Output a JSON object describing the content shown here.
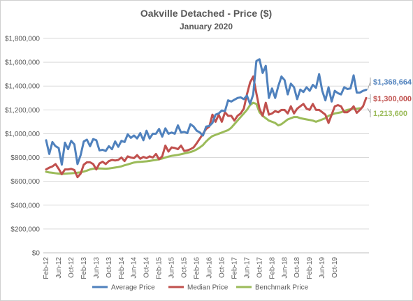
{
  "chart_data": {
    "type": "line",
    "title": "Oakville Detached - Price ($)",
    "subtitle": "January 2020",
    "xlabel": "",
    "ylabel": "",
    "ylim": [
      0,
      1800000
    ],
    "y_ticks": [
      "$0",
      "$200,000",
      "$400,000",
      "$600,000",
      "$800,000",
      "$1,000,000",
      "$1,200,000",
      "$1,400,000",
      "$1,600,000",
      "$1,800,000"
    ],
    "x_tick_labels": [
      "Feb-12",
      "Jun-12",
      "Oct-12",
      "Feb-13",
      "Jun-13",
      "Oct-13",
      "Feb-14",
      "Jun-14",
      "Oct-14",
      "Feb-15",
      "Jun-15",
      "Oct-15",
      "Feb-16",
      "Jun-16",
      "Oct-16",
      "Feb-17",
      "Jun-17",
      "Oct-17",
      "Feb-18",
      "Jun-18",
      "Oct-18",
      "Feb-19",
      "Jun-19",
      "Oct-19"
    ],
    "x_tick_every": 4,
    "grid": true,
    "legend_position": "bottom",
    "series": [
      {
        "name": "Average Price",
        "color": "#4f81bd",
        "end_label": "$1,368,664",
        "values": [
          945000,
          830000,
          930000,
          895000,
          880000,
          740000,
          925000,
          870000,
          940000,
          910000,
          745000,
          820000,
          935000,
          950000,
          895000,
          955000,
          945000,
          860000,
          865000,
          855000,
          895000,
          870000,
          935000,
          890000,
          940000,
          930000,
          995000,
          965000,
          985000,
          960000,
          1005000,
          945000,
          1025000,
          960000,
          1000000,
          1000000,
          1040000,
          975000,
          1045000,
          1000000,
          1010000,
          1000000,
          1070000,
          1010000,
          1015000,
          1005000,
          1080000,
          1060000,
          1025000,
          1010000,
          985000,
          1060000,
          1065000,
          1090000,
          1160000,
          1170000,
          1195000,
          1190000,
          1280000,
          1270000,
          1285000,
          1300000,
          1305000,
          1290000,
          1320000,
          1250000,
          1330000,
          1610000,
          1625000,
          1510000,
          1570000,
          1300000,
          1380000,
          1300000,
          1400000,
          1480000,
          1450000,
          1330000,
          1420000,
          1390000,
          1290000,
          1370000,
          1350000,
          1390000,
          1360000,
          1410000,
          1385000,
          1500000,
          1360000,
          1280000,
          1390000,
          1270000,
          1360000,
          1340000,
          1330000,
          1390000,
          1375000,
          1380000,
          1490000,
          1345000,
          1345000,
          1360000,
          1368664
        ]
      },
      {
        "name": "Median Price",
        "color": "#c0504d",
        "end_label": "$1,300,000",
        "values": [
          700000,
          715000,
          725000,
          745000,
          705000,
          660000,
          700000,
          700000,
          705000,
          695000,
          635000,
          665000,
          740000,
          760000,
          760000,
          745000,
          700000,
          750000,
          765000,
          745000,
          770000,
          780000,
          775000,
          780000,
          800000,
          770000,
          810000,
          800000,
          795000,
          820000,
          790000,
          805000,
          795000,
          810000,
          800000,
          830000,
          785000,
          810000,
          900000,
          850000,
          885000,
          880000,
          870000,
          900000,
          855000,
          860000,
          870000,
          885000,
          920000,
          960000,
          1000000,
          1040000,
          1060000,
          1160000,
          1100000,
          1160000,
          1100000,
          1180000,
          1150000,
          1150000,
          1110000,
          1150000,
          1170000,
          1210000,
          1330000,
          1430000,
          1480000,
          1340000,
          1210000,
          1150000,
          1260000,
          1160000,
          1170000,
          1190000,
          1180000,
          1200000,
          1200000,
          1170000,
          1230000,
          1170000,
          1210000,
          1230000,
          1250000,
          1210000,
          1200000,
          1250000,
          1200000,
          1200000,
          1180000,
          1160000,
          1090000,
          1160000,
          1230000,
          1240000,
          1230000,
          1180000,
          1180000,
          1200000,
          1230000,
          1175000,
          1200000,
          1230000,
          1300000
        ]
      },
      {
        "name": "Benchmark Price",
        "color": "#9bbb59",
        "end_label": "1,213,600",
        "values": [
          680000,
          675000,
          672000,
          668000,
          665000,
          662000,
          664000,
          666000,
          668000,
          670000,
          673000,
          676000,
          682000,
          690000,
          700000,
          706000,
          708000,
          708000,
          707000,
          706000,
          708000,
          712000,
          716000,
          720000,
          726000,
          735000,
          742000,
          750000,
          758000,
          762000,
          764000,
          766000,
          768000,
          772000,
          776000,
          780000,
          785000,
          792000,
          800000,
          808000,
          814000,
          818000,
          822000,
          828000,
          834000,
          840000,
          846000,
          855000,
          868000,
          885000,
          905000,
          935000,
          960000,
          980000,
          990000,
          1000000,
          1010000,
          1020000,
          1030000,
          1050000,
          1080000,
          1110000,
          1140000,
          1170000,
          1200000,
          1240000,
          1260000,
          1250000,
          1180000,
          1150000,
          1130000,
          1110000,
          1100000,
          1090000,
          1070000,
          1080000,
          1100000,
          1120000,
          1130000,
          1140000,
          1140000,
          1130000,
          1125000,
          1120000,
          1115000,
          1110000,
          1100000,
          1110000,
          1120000,
          1130000,
          1150000,
          1160000,
          1170000,
          1175000,
          1180000,
          1190000,
          1200000,
          1205000,
          1210000,
          1210000,
          1213600
        ]
      }
    ]
  }
}
